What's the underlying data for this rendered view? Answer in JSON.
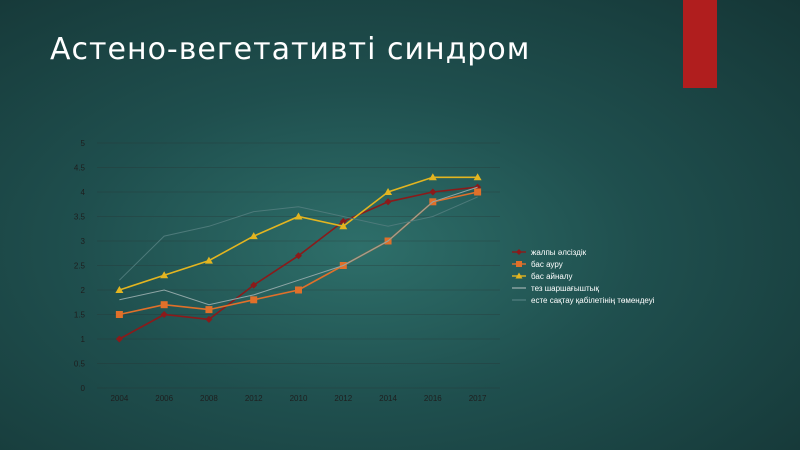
{
  "slide": {
    "title": "Астено-вегетативті синдром",
    "accent_color": "#b01e1e"
  },
  "chart_data": {
    "type": "line",
    "title": "",
    "xlabel": "",
    "ylabel": "",
    "categories": [
      "2004",
      "2006",
      "2008",
      "2012",
      "2010",
      "2012",
      "2014",
      "2016",
      "2017"
    ],
    "ylim": [
      0,
      5
    ],
    "yticks": [
      "0",
      "0.5",
      "1",
      "1.5",
      "2",
      "2.5",
      "3",
      "3.5",
      "4",
      "4.5",
      "5"
    ],
    "grid": true,
    "legend_position": "right",
    "series": [
      {
        "name": "жалпы әлсіздік",
        "values": [
          1,
          1.5,
          1.4,
          2.1,
          2.7,
          3.4,
          3.8,
          4.0,
          4.1
        ],
        "color": "#8b1a1a",
        "marker": "diamond"
      },
      {
        "name": "бас ауру",
        "values": [
          1.5,
          1.7,
          1.6,
          1.8,
          2.0,
          2.5,
          3.0,
          3.8,
          4.0
        ],
        "color": "#e0702a",
        "marker": "square"
      },
      {
        "name": "бас айналу",
        "values": [
          2.0,
          2.3,
          2.6,
          3.1,
          3.5,
          3.3,
          4.0,
          4.3,
          4.3
        ],
        "color": "#e3b520",
        "marker": "triangle"
      },
      {
        "name": "тез шаршағыштық",
        "values": [
          1.8,
          2.0,
          1.7,
          1.9,
          2.2,
          2.5,
          3.0,
          3.8,
          4.1
        ],
        "color": "#8fa6a6",
        "marker": "none"
      },
      {
        "name": "есте сақтау қабілетінің төмендеуі",
        "values": [
          2.2,
          3.1,
          3.3,
          3.6,
          3.7,
          3.5,
          3.3,
          3.5,
          3.9
        ],
        "color": "#4d7a7a",
        "marker": "none"
      }
    ]
  }
}
